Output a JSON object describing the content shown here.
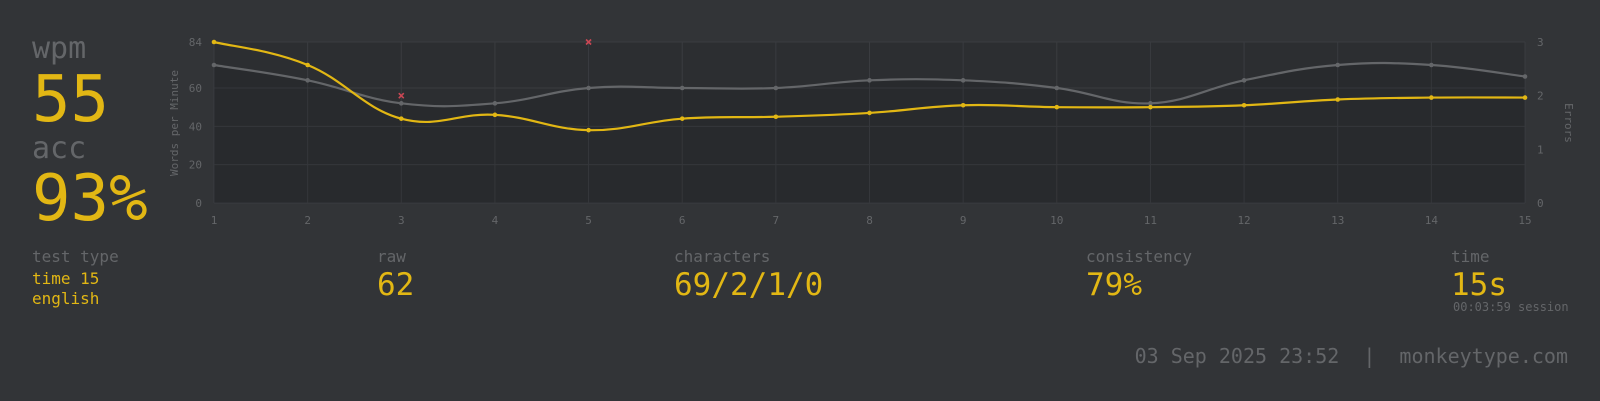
{
  "stats": {
    "wpm_label": "wpm",
    "wpm_value": "55",
    "acc_label": "acc",
    "acc_value": "93%",
    "test_type_label": "test type",
    "test_type_mode": "time 15",
    "test_type_language": "english",
    "raw_label": "raw",
    "raw_value": "62",
    "characters_label": "characters",
    "characters_value": "69/2/1/0",
    "consistency_label": "consistency",
    "consistency_value": "79%",
    "time_label": "time",
    "time_value": "15s",
    "session_time": "00:03:59 session"
  },
  "footer": {
    "date": "03 Sep 2025 23:52",
    "separator": "|",
    "site": "monkeytype.com"
  },
  "colors": {
    "background": "#323437",
    "main": "#e2b714",
    "sub": "#646669",
    "error": "#ca4754"
  },
  "chart_data": {
    "type": "line",
    "x": [
      1,
      2,
      3,
      4,
      5,
      6,
      7,
      8,
      9,
      10,
      11,
      12,
      13,
      14,
      15
    ],
    "ylabel": "Words per Minute",
    "y2label": "Errors",
    "ylim": [
      0,
      84
    ],
    "y2lim": [
      0,
      3
    ],
    "yticks": [
      0,
      20,
      40,
      60,
      84
    ],
    "y2ticks": [
      0,
      1,
      2,
      3
    ],
    "grid": true,
    "series": [
      {
        "name": "wpm",
        "color": "#e2b714",
        "axis": "left",
        "values": [
          84,
          72,
          44,
          46,
          38,
          44,
          45,
          47,
          51,
          50,
          50,
          51,
          54,
          55,
          55
        ]
      },
      {
        "name": "raw",
        "color": "#646669",
        "axis": "left",
        "values": [
          72,
          64,
          52,
          52,
          60,
          60,
          60,
          64,
          64,
          60,
          52,
          64,
          72,
          72,
          66
        ]
      },
      {
        "name": "errors",
        "color": "#ca4754",
        "axis": "right",
        "type": "scatter",
        "points": [
          {
            "x": 3,
            "y": 2
          },
          {
            "x": 5,
            "y": 3
          }
        ]
      }
    ]
  }
}
